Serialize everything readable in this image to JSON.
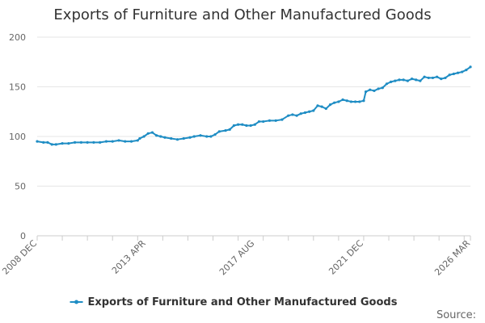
{
  "colors": {
    "series": "#1f8dc4",
    "grid": "#e6e6e6",
    "axis": "#cccccc"
  },
  "chart_data": {
    "type": "line",
    "title": "Exports of Furniture and Other Manufactured Goods",
    "xlabel": "",
    "ylabel": "",
    "ylim": [
      0,
      200
    ],
    "yticks": [
      "0",
      "50",
      "100",
      "150",
      "200"
    ],
    "xlim": [
      "2008-12",
      "2026-03"
    ],
    "xtick_labels": [
      "2008 DEC",
      "2013 APR",
      "2017 AUG",
      "2021 DEC",
      "2026 MAR"
    ],
    "grid": true,
    "legend": "bottom",
    "source": "Source:",
    "series": [
      {
        "name": "Exports of Furniture and Other Manufactured Goods",
        "points": [
          [
            "2008-12",
            95
          ],
          [
            "2009-03",
            94
          ],
          [
            "2009-05",
            94
          ],
          [
            "2009-07",
            92
          ],
          [
            "2009-09",
            92
          ],
          [
            "2009-12",
            93
          ],
          [
            "2010-03",
            93
          ],
          [
            "2010-06",
            94
          ],
          [
            "2010-09",
            94
          ],
          [
            "2010-12",
            94
          ],
          [
            "2011-03",
            94
          ],
          [
            "2011-06",
            94
          ],
          [
            "2011-09",
            95
          ],
          [
            "2011-12",
            95
          ],
          [
            "2012-03",
            96
          ],
          [
            "2012-06",
            95
          ],
          [
            "2012-09",
            95
          ],
          [
            "2012-12",
            96
          ],
          [
            "2013-01",
            98
          ],
          [
            "2013-03",
            100
          ],
          [
            "2013-05",
            103
          ],
          [
            "2013-07",
            104
          ],
          [
            "2013-09",
            101
          ],
          [
            "2013-11",
            100
          ],
          [
            "2014-01",
            99
          ],
          [
            "2014-04",
            98
          ],
          [
            "2014-07",
            97
          ],
          [
            "2014-10",
            98
          ],
          [
            "2015-01",
            99
          ],
          [
            "2015-03",
            100
          ],
          [
            "2015-06",
            101
          ],
          [
            "2015-09",
            100
          ],
          [
            "2015-11",
            100
          ],
          [
            "2016-01",
            102
          ],
          [
            "2016-03",
            105
          ],
          [
            "2016-06",
            106
          ],
          [
            "2016-08",
            107
          ],
          [
            "2016-10",
            111
          ],
          [
            "2016-12",
            112
          ],
          [
            "2017-02",
            112
          ],
          [
            "2017-04",
            111
          ],
          [
            "2017-06",
            111
          ],
          [
            "2017-08",
            112
          ],
          [
            "2017-10",
            115
          ],
          [
            "2017-12",
            115
          ],
          [
            "2018-03",
            116
          ],
          [
            "2018-06",
            116
          ],
          [
            "2018-09",
            117
          ],
          [
            "2018-12",
            121
          ],
          [
            "2019-02",
            122
          ],
          [
            "2019-04",
            121
          ],
          [
            "2019-06",
            123
          ],
          [
            "2019-08",
            124
          ],
          [
            "2019-10",
            125
          ],
          [
            "2019-12",
            126
          ],
          [
            "2020-02",
            131
          ],
          [
            "2020-04",
            130
          ],
          [
            "2020-06",
            128
          ],
          [
            "2020-08",
            132
          ],
          [
            "2020-10",
            134
          ],
          [
            "2020-12",
            135
          ],
          [
            "2021-02",
            137
          ],
          [
            "2021-04",
            136
          ],
          [
            "2021-06",
            135
          ],
          [
            "2021-08",
            135
          ],
          [
            "2021-10",
            135
          ],
          [
            "2021-12",
            136
          ],
          [
            "2022-01",
            145
          ],
          [
            "2022-03",
            147
          ],
          [
            "2022-05",
            146
          ],
          [
            "2022-07",
            148
          ],
          [
            "2022-09",
            149
          ],
          [
            "2022-11",
            153
          ],
          [
            "2023-01",
            155
          ],
          [
            "2023-03",
            156
          ],
          [
            "2023-05",
            157
          ],
          [
            "2023-07",
            157
          ],
          [
            "2023-09",
            156
          ],
          [
            "2023-11",
            158
          ],
          [
            "2024-01",
            157
          ],
          [
            "2024-03",
            156
          ],
          [
            "2024-05",
            160
          ],
          [
            "2024-07",
            159
          ],
          [
            "2024-09",
            159
          ],
          [
            "2024-11",
            160
          ],
          [
            "2025-01",
            158
          ],
          [
            "2025-03",
            159
          ],
          [
            "2025-05",
            162
          ],
          [
            "2025-07",
            163
          ],
          [
            "2025-09",
            164
          ],
          [
            "2025-11",
            165
          ],
          [
            "2026-01",
            167
          ],
          [
            "2026-03",
            170
          ]
        ]
      }
    ]
  }
}
